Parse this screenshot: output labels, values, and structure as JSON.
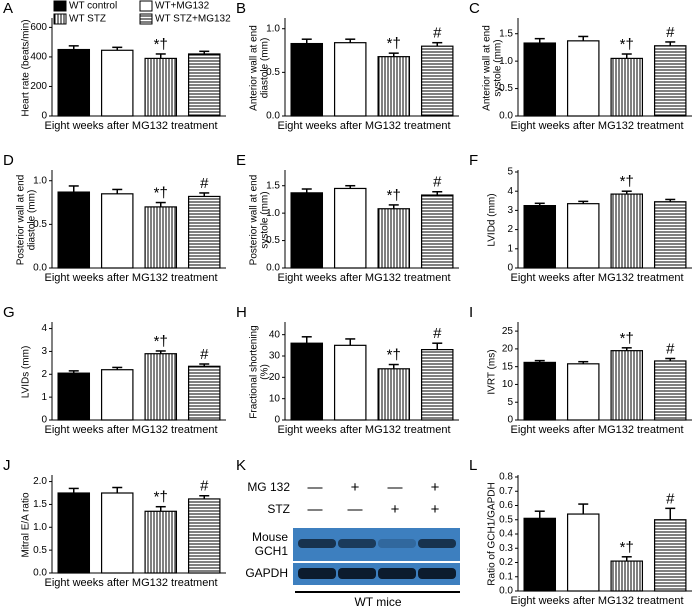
{
  "chart_data": [
    {
      "type": "bar",
      "panel": "A",
      "ylabel": [
        "Heart rate (beats/min)"
      ],
      "xlabel": "Eight weeks after MG132 treatment",
      "categories": [
        null,
        null,
        null,
        null
      ],
      "values": [
        450,
        445,
        390,
        420
      ],
      "errors": [
        25,
        20,
        30,
        18
      ],
      "significance": [
        null,
        null,
        "*†",
        null
      ],
      "ylim": [
        0,
        650
      ],
      "yticks": [
        0,
        200,
        400,
        600
      ],
      "fills": [
        "solid",
        "open",
        "vertical-stripes",
        "horizontal-stripes"
      ],
      "legend": [
        "WT control",
        "WT+MG132",
        "WT STZ",
        "WT STZ+MG132"
      ]
    },
    {
      "type": "bar",
      "panel": "B",
      "ylabel": [
        "Anterior wall at end",
        "diastole (mm)"
      ],
      "xlabel": "Eight weeks after MG132 treatment",
      "categories": [
        null,
        null,
        null,
        null
      ],
      "values": [
        0.83,
        0.84,
        0.68,
        0.8
      ],
      "errors": [
        0.05,
        0.04,
        0.04,
        0.04
      ],
      "significance": [
        null,
        null,
        "*†",
        "#"
      ],
      "ylim": [
        0,
        1.1
      ],
      "yticks": [
        {
          "value": 0,
          "label": "0.0"
        },
        0.5,
        {
          "value": 1,
          "label": "1.0"
        }
      ],
      "fills": [
        "solid",
        "open",
        "vertical-stripes",
        "horizontal-stripes"
      ]
    },
    {
      "type": "bar",
      "panel": "C",
      "ylabel": [
        "Anterior wall at end",
        "systole (mm)"
      ],
      "xlabel": "Eight weeks after MG132 treatment",
      "categories": [
        null,
        null,
        null,
        null
      ],
      "values": [
        1.33,
        1.37,
        1.05,
        1.28
      ],
      "errors": [
        0.08,
        0.08,
        0.08,
        0.07
      ],
      "significance": [
        null,
        null,
        "*†",
        "#"
      ],
      "ylim": [
        0,
        1.75
      ],
      "yticks": [
        {
          "value": 0,
          "label": "0.0"
        },
        0.5,
        {
          "value": 1,
          "label": "1.0"
        },
        1.5
      ],
      "fills": [
        "solid",
        "open",
        "vertical-stripes",
        "horizontal-stripes"
      ]
    },
    {
      "type": "bar",
      "panel": "D",
      "ylabel": [
        "Posterior wall at end",
        "diastole (mm)"
      ],
      "xlabel": "Eight weeks after MG132 treatment",
      "categories": [
        null,
        null,
        null,
        null
      ],
      "values": [
        0.87,
        0.85,
        0.7,
        0.82
      ],
      "errors": [
        0.07,
        0.05,
        0.05,
        0.04
      ],
      "significance": [
        null,
        null,
        "*†",
        "#"
      ],
      "ylim": [
        0,
        1.1
      ],
      "yticks": [
        {
          "value": 0,
          "label": "0.0"
        },
        0.5,
        {
          "value": 1,
          "label": "1.0"
        }
      ],
      "fills": [
        "solid",
        "open",
        "vertical-stripes",
        "horizontal-stripes"
      ]
    },
    {
      "type": "bar",
      "panel": "E",
      "ylabel": [
        "Posterior wall at end",
        "systole (mm)"
      ],
      "xlabel": "Eight weeks after MG132 treatment",
      "categories": [
        null,
        null,
        null,
        null
      ],
      "values": [
        1.37,
        1.45,
        1.08,
        1.33
      ],
      "errors": [
        0.07,
        0.05,
        0.07,
        0.06
      ],
      "significance": [
        null,
        null,
        "*†",
        "#"
      ],
      "ylim": [
        0,
        1.75
      ],
      "yticks": [
        {
          "value": 0,
          "label": "0.0"
        },
        0.5,
        {
          "value": 1,
          "label": "1.0"
        },
        1.5
      ],
      "fills": [
        "solid",
        "open",
        "vertical-stripes",
        "horizontal-stripes"
      ]
    },
    {
      "type": "bar",
      "panel": "F",
      "ylabel": [
        "LVIDd (mm)"
      ],
      "xlabel": "Eight weeks after MG132 treatment",
      "categories": [
        null,
        null,
        null,
        null
      ],
      "values": [
        3.25,
        3.35,
        3.85,
        3.45
      ],
      "errors": [
        0.12,
        0.12,
        0.15,
        0.12
      ],
      "significance": [
        null,
        null,
        "*†",
        null
      ],
      "ylim": [
        0,
        5
      ],
      "yticks": [
        0,
        1,
        2,
        3,
        4,
        5
      ],
      "fills": [
        "solid",
        "open",
        "vertical-stripes",
        "horizontal-stripes"
      ]
    },
    {
      "type": "bar",
      "panel": "G",
      "ylabel": [
        "LVIDs (mm)"
      ],
      "xlabel": "Eight weeks after MG132 treatment",
      "categories": [
        null,
        null,
        null,
        null
      ],
      "values": [
        2.05,
        2.2,
        2.9,
        2.35
      ],
      "errors": [
        0.1,
        0.1,
        0.12,
        0.1
      ],
      "significance": [
        null,
        null,
        "*†",
        "#"
      ],
      "ylim": [
        0,
        4.2
      ],
      "yticks": [
        0,
        1,
        2,
        3,
        4
      ],
      "fills": [
        "solid",
        "open",
        "vertical-stripes",
        "horizontal-stripes"
      ]
    },
    {
      "type": "bar",
      "panel": "H",
      "ylabel": [
        "Fractional shortening",
        "(%)"
      ],
      "xlabel": "Eight weeks after MG132 treatment",
      "categories": [
        null,
        null,
        null,
        null
      ],
      "values": [
        36,
        35,
        24,
        33
      ],
      "errors": [
        3,
        3,
        2,
        3
      ],
      "significance": [
        null,
        null,
        "*†",
        "#"
      ],
      "ylim": [
        0,
        45
      ],
      "yticks": [
        0,
        10,
        20,
        30,
        40
      ],
      "fills": [
        "solid",
        "open",
        "vertical-stripes",
        "horizontal-stripes"
      ]
    },
    {
      "type": "bar",
      "panel": "I",
      "ylabel": [
        "IVRT (ms)"
      ],
      "xlabel": "Eight weeks after MG132 treatment",
      "categories": [
        null,
        null,
        null,
        null
      ],
      "values": [
        16.2,
        15.8,
        19.5,
        16.6
      ],
      "errors": [
        0.5,
        0.6,
        0.8,
        0.7
      ],
      "significance": [
        null,
        null,
        "*†",
        "#"
      ],
      "ylim": [
        0,
        27
      ],
      "yticks": [
        0,
        5,
        10,
        15,
        20,
        25
      ],
      "fills": [
        "solid",
        "open",
        "vertical-stripes",
        "horizontal-stripes"
      ]
    },
    {
      "type": "bar",
      "panel": "J",
      "ylabel": [
        "Mitral E/A ratio"
      ],
      "xlabel": "Eight weeks after MG132 treatment",
      "categories": [
        null,
        null,
        null,
        null
      ],
      "values": [
        1.75,
        1.75,
        1.35,
        1.62
      ],
      "errors": [
        0.1,
        0.12,
        0.1,
        0.07
      ],
      "significance": [
        null,
        null,
        "*†",
        "#"
      ],
      "ylim": [
        0,
        2.1
      ],
      "yticks": [
        {
          "value": 0,
          "label": "0.0"
        },
        0.5,
        {
          "value": 1,
          "label": "1.0"
        },
        1.5,
        {
          "value": 2,
          "label": "2.0"
        }
      ],
      "fills": [
        "solid",
        "open",
        "vertical-stripes",
        "horizontal-stripes"
      ]
    },
    {
      "type": "bar",
      "panel": "L",
      "ylabel": [
        "Ratio of GCH1/GAPDH"
      ],
      "xlabel": "Eight weeks after MG132 treatment",
      "categories": [
        null,
        null,
        null,
        null
      ],
      "values": [
        0.51,
        0.54,
        0.21,
        0.5
      ],
      "errors": [
        0.05,
        0.07,
        0.03,
        0.08
      ],
      "significance": [
        null,
        null,
        "*†",
        "#"
      ],
      "ylim": [
        0,
        0.8
      ],
      "yticks": [
        {
          "value": 0,
          "label": "0.0"
        },
        0.1,
        0.2,
        0.3,
        0.4,
        0.5,
        0.6,
        0.7,
        0.8
      ],
      "fills": [
        "solid",
        "open",
        "vertical-stripes",
        "horizontal-stripes"
      ]
    }
  ],
  "blot": {
    "panel": "K",
    "rows": [
      {
        "label": "MG 132",
        "signs": [
          "—",
          "+",
          "—",
          "+"
        ]
      },
      {
        "label": "STZ",
        "signs": [
          "—",
          "—",
          "+",
          "+"
        ]
      }
    ],
    "bands": [
      [
        "Mouse",
        "GCH1"
      ],
      [
        "GAPDH"
      ]
    ],
    "footer": "WT mice"
  }
}
